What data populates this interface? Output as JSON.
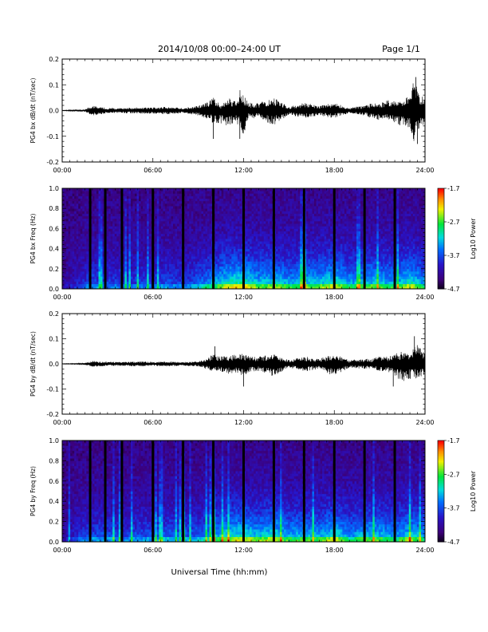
{
  "header": {
    "title": "2014/10/08  00:00–24:00 UT",
    "page": "Page 1/1"
  },
  "xlabel": "Universal Time (hh:mm)",
  "chart_data": [
    {
      "type": "line",
      "ylabel": "PG4 bx dB/dt (nT/sec)",
      "xlim": [
        0,
        24
      ],
      "ylim": [
        -0.2,
        0.2
      ],
      "yticks": [
        "0.2",
        "0.1",
        "0.0",
        "-0.1",
        "-0.2"
      ],
      "xticks": [
        "00:00",
        "06:00",
        "12:00",
        "18:00",
        "24:00"
      ],
      "envelope": {
        "x": [
          0,
          1,
          1.5,
          2,
          3,
          4,
          5,
          6,
          7,
          8,
          9,
          9.5,
          10,
          10.5,
          11,
          11.5,
          11.8,
          12,
          12.3,
          13,
          14,
          15,
          16,
          17,
          18,
          19,
          20,
          20.5,
          21,
          21.5,
          22,
          22.5,
          23,
          23.3,
          23.6,
          24
        ],
        "upper": [
          0.001,
          0.003,
          0.005,
          0.02,
          0.01,
          0.01,
          0.012,
          0.012,
          0.015,
          0.01,
          0.02,
          0.03,
          0.05,
          0.02,
          0.05,
          0.04,
          0.09,
          0.06,
          0.03,
          0.03,
          0.05,
          0.015,
          0.03,
          0.02,
          0.03,
          0.01,
          0.02,
          0.03,
          0.03,
          0.04,
          0.04,
          0.04,
          0.06,
          0.13,
          0.07,
          0.05
        ],
        "lower": [
          -0.001,
          -0.003,
          -0.005,
          -0.02,
          -0.01,
          -0.01,
          -0.012,
          -0.012,
          -0.015,
          -0.01,
          -0.02,
          -0.03,
          -0.05,
          -0.05,
          -0.06,
          -0.05,
          -0.07,
          -0.11,
          -0.03,
          -0.03,
          -0.06,
          -0.015,
          -0.03,
          -0.02,
          -0.03,
          -0.01,
          -0.02,
          -0.03,
          -0.04,
          -0.03,
          -0.06,
          -0.06,
          -0.07,
          -0.13,
          -0.07,
          -0.05
        ]
      },
      "spikes": [
        {
          "x": 10.0,
          "y": -0.11
        },
        {
          "x": 11.75,
          "y": -0.11
        },
        {
          "x": 23.4,
          "y": 0.13
        },
        {
          "x": 23.5,
          "y": -0.13
        }
      ]
    },
    {
      "type": "heatmap",
      "ylabel": "PG4 bx Freq (Hz)",
      "xlim": [
        0,
        24
      ],
      "ylim": [
        0,
        1
      ],
      "yticks": [
        "1.0",
        "0.8",
        "0.6",
        "0.4",
        "0.2",
        "0.0"
      ],
      "xticks": [
        "00:00",
        "06:00",
        "12:00",
        "18:00",
        "24:00"
      ],
      "colorbar": {
        "label": "Log10 Power",
        "range": [
          -4.7,
          -1.7
        ],
        "ticks": [
          "-1.7",
          "-2.7",
          "-3.7",
          "-4.7"
        ]
      },
      "data_gaps_hours": [
        1.85,
        2.85,
        3.95,
        6.0,
        8.0,
        10.0,
        12.0,
        14.0,
        16.0,
        18.0,
        20.0,
        22.0
      ],
      "activity": {
        "x": [
          0,
          1,
          2,
          3,
          4,
          5,
          6,
          7,
          8,
          9,
          10,
          11,
          12,
          13,
          14,
          15,
          16,
          17,
          18,
          19,
          20,
          21,
          22,
          23,
          24
        ],
        "level": [
          0.05,
          0.2,
          0.35,
          0.3,
          0.3,
          0.3,
          0.3,
          0.35,
          0.3,
          0.4,
          0.55,
          0.7,
          0.75,
          0.6,
          0.65,
          0.55,
          0.6,
          0.6,
          0.7,
          0.55,
          0.6,
          0.6,
          0.55,
          0.7,
          0.5
        ]
      }
    },
    {
      "type": "line",
      "ylabel": "PG4 by dB/dt (nT/sec)",
      "xlim": [
        0,
        24
      ],
      "ylim": [
        -0.2,
        0.2
      ],
      "yticks": [
        "0.2",
        "0.1",
        "0.0",
        "-0.1",
        "-0.2"
      ],
      "xticks": [
        "00:00",
        "06:00",
        "12:00",
        "18:00",
        "24:00"
      ],
      "envelope": {
        "x": [
          0,
          1,
          1.5,
          2,
          3,
          4,
          5,
          6,
          7,
          8,
          9,
          9.5,
          10,
          10.5,
          11,
          11.5,
          12,
          12.5,
          13,
          14,
          15,
          16,
          17,
          18,
          19,
          20,
          20.5,
          21,
          21.5,
          22,
          22.5,
          23,
          23.5,
          24
        ],
        "upper": [
          0.001,
          0.002,
          0.004,
          0.012,
          0.008,
          0.008,
          0.01,
          0.008,
          0.01,
          0.008,
          0.01,
          0.02,
          0.04,
          0.03,
          0.03,
          0.04,
          0.04,
          0.03,
          0.03,
          0.04,
          0.015,
          0.03,
          0.02,
          0.04,
          0.015,
          0.02,
          0.02,
          0.03,
          0.03,
          0.04,
          0.05,
          0.05,
          0.08,
          0.04
        ],
        "lower": [
          -0.001,
          -0.002,
          -0.004,
          -0.012,
          -0.008,
          -0.008,
          -0.01,
          -0.008,
          -0.01,
          -0.008,
          -0.01,
          -0.02,
          -0.03,
          -0.03,
          -0.04,
          -0.04,
          -0.05,
          -0.03,
          -0.03,
          -0.05,
          -0.015,
          -0.03,
          -0.02,
          -0.05,
          -0.015,
          -0.02,
          -0.02,
          -0.03,
          -0.03,
          -0.05,
          -0.07,
          -0.06,
          -0.06,
          -0.04
        ]
      },
      "spikes": [
        {
          "x": 10.1,
          "y": 0.07
        },
        {
          "x": 12.0,
          "y": -0.09
        },
        {
          "x": 21.9,
          "y": -0.09
        },
        {
          "x": 23.3,
          "y": 0.11
        }
      ]
    },
    {
      "type": "heatmap",
      "ylabel": "PG4 by Freq (Hz)",
      "xlim": [
        0,
        24
      ],
      "ylim": [
        0,
        1
      ],
      "yticks": [
        "1.0",
        "0.8",
        "0.6",
        "0.4",
        "0.2",
        "0.0"
      ],
      "xticks": [
        "00:00",
        "06:00",
        "12:00",
        "18:00",
        "24:00"
      ],
      "colorbar": {
        "label": "Log10 Power",
        "range": [
          -4.7,
          -1.7
        ],
        "ticks": [
          "-1.7",
          "-2.7",
          "-3.7",
          "-4.7"
        ]
      },
      "data_gaps_hours": [
        1.85,
        2.85,
        3.95,
        6.0,
        8.0,
        10.0,
        12.0,
        14.0,
        16.0,
        18.0,
        20.0,
        22.0
      ],
      "activity": {
        "x": [
          0,
          1,
          2,
          3,
          4,
          5,
          6,
          7,
          8,
          9,
          10,
          11,
          12,
          13,
          14,
          15,
          16,
          17,
          18,
          19,
          20,
          21,
          22,
          23,
          24
        ],
        "level": [
          0.05,
          0.25,
          0.35,
          0.35,
          0.3,
          0.35,
          0.35,
          0.4,
          0.35,
          0.4,
          0.55,
          0.65,
          0.7,
          0.6,
          0.7,
          0.55,
          0.6,
          0.55,
          0.7,
          0.5,
          0.6,
          0.6,
          0.5,
          0.65,
          0.5
        ]
      }
    }
  ]
}
